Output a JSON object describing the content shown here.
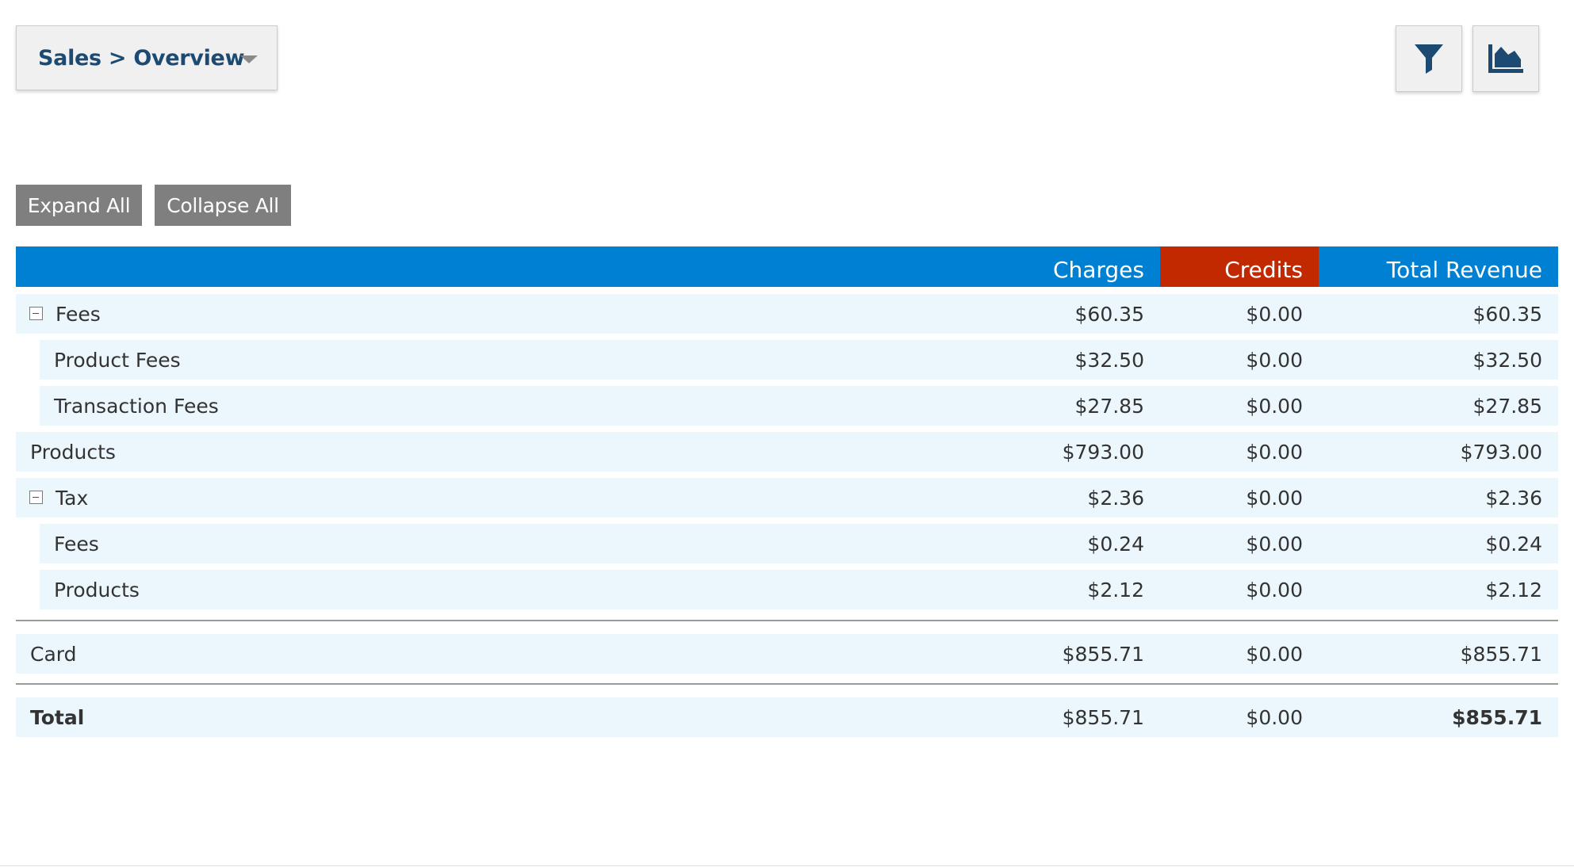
{
  "header": {
    "breadcrumb": "Sales > Overview",
    "filter_icon": "filter-icon",
    "chart_icon": "area-chart-icon"
  },
  "actions": {
    "expand_all": "Expand All",
    "collapse_all": "Collapse All"
  },
  "table": {
    "columns": [
      "",
      "Charges",
      "Credits",
      "Total Revenue"
    ],
    "rows": [
      {
        "label": "Fees",
        "charges": "$60.35",
        "credits": "$0.00",
        "total": "$60.35",
        "level": 0,
        "expandable": true
      },
      {
        "label": "Product Fees",
        "charges": "$32.50",
        "credits": "$0.00",
        "total": "$32.50",
        "level": 1,
        "expandable": false
      },
      {
        "label": "Transaction Fees",
        "charges": "$27.85",
        "credits": "$0.00",
        "total": "$27.85",
        "level": 1,
        "expandable": false
      },
      {
        "label": "Products",
        "charges": "$793.00",
        "credits": "$0.00",
        "total": "$793.00",
        "level": 0,
        "expandable": false
      },
      {
        "label": "Tax",
        "charges": "$2.36",
        "credits": "$0.00",
        "total": "$2.36",
        "level": 0,
        "expandable": true
      },
      {
        "label": "Fees",
        "charges": "$0.24",
        "credits": "$0.00",
        "total": "$0.24",
        "level": 1,
        "expandable": false
      },
      {
        "label": "Products",
        "charges": "$2.12",
        "credits": "$0.00",
        "total": "$2.12",
        "level": 1,
        "expandable": false
      }
    ],
    "payment_rows": [
      {
        "label": "Card",
        "charges": "$855.71",
        "credits": "$0.00",
        "total": "$855.71"
      }
    ],
    "total_row": {
      "label": "Total",
      "charges": "$855.71",
      "credits": "$0.00",
      "total": "$855.71"
    }
  },
  "colors": {
    "header_blue": "#0080d2",
    "credits_red": "#c22900",
    "row_bg": "#ecf7fd",
    "breadcrumb_text": "#1d4a72",
    "button_gray": "#7f7f7f"
  }
}
